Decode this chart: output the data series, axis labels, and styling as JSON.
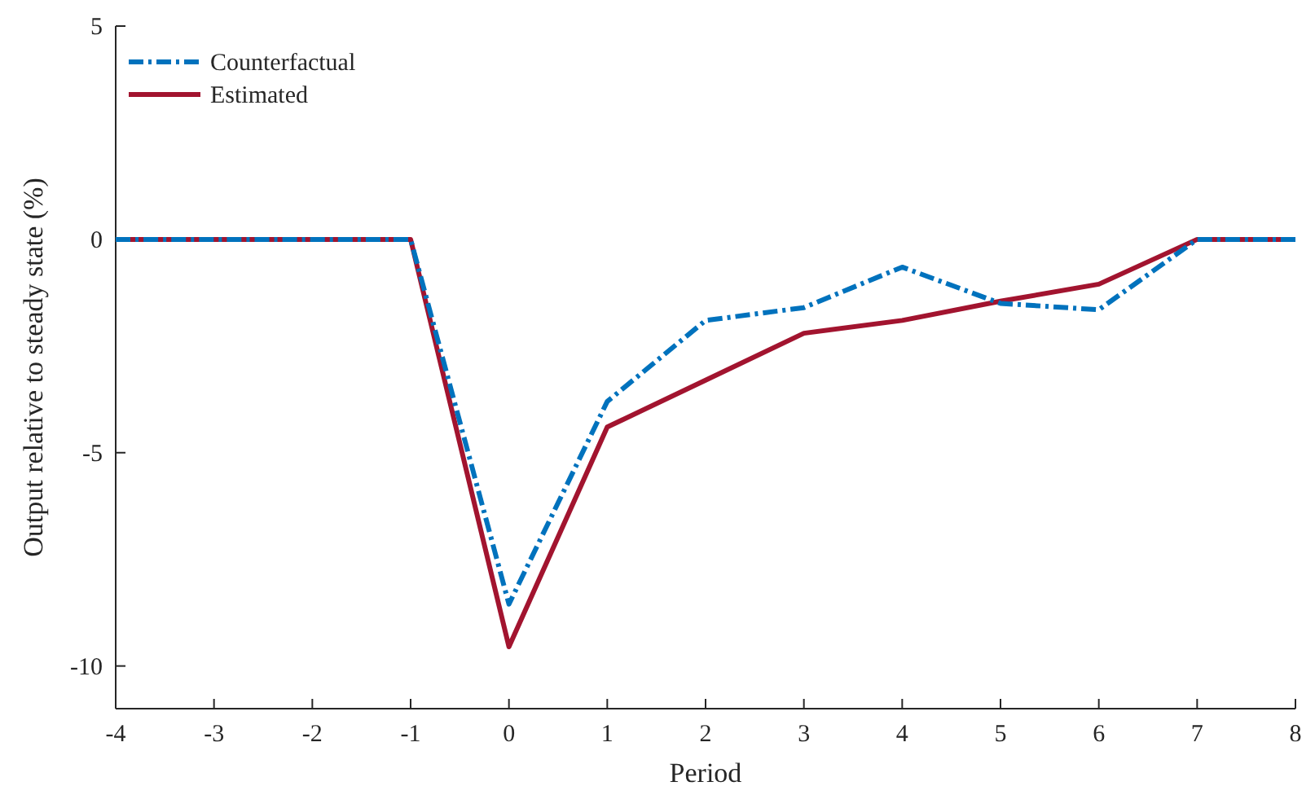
{
  "chart_data": {
    "type": "line",
    "xlabel": "Period",
    "ylabel": "Output relative to steady state (%)",
    "x": [
      -4,
      -3,
      -2,
      -1,
      0,
      1,
      2,
      3,
      4,
      5,
      6,
      7,
      8
    ],
    "series": [
      {
        "name": "Counterfactual",
        "color": "#0072bd",
        "line_style": "dashed",
        "values": [
          0,
          0,
          0,
          0,
          -8.55,
          -3.8,
          -1.9,
          -1.6,
          -0.65,
          -1.5,
          -1.65,
          0,
          0
        ]
      },
      {
        "name": "Estimated",
        "color": "#a2142f",
        "line_style": "solid",
        "values": [
          0,
          0,
          0,
          0,
          -9.55,
          -4.4,
          -3.3,
          -2.2,
          -1.9,
          -1.45,
          -1.05,
          0,
          0
        ]
      }
    ],
    "xlim": [
      -4,
      8
    ],
    "xticks": [
      -4,
      -3,
      -2,
      -1,
      0,
      1,
      2,
      3,
      4,
      5,
      6,
      7,
      8
    ],
    "ylim": [
      -11,
      5
    ],
    "yticks": [
      -10,
      -5,
      0,
      5
    ],
    "legend": "top left",
    "grid": false,
    "marker": "none"
  }
}
